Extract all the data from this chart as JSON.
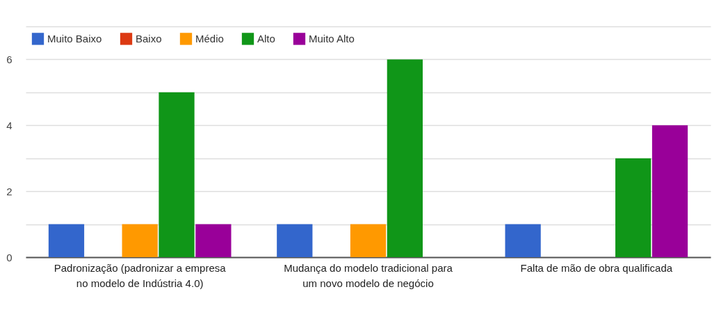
{
  "chart_data": {
    "type": "bar",
    "categories": [
      "Padronização (padronizar a empresa no modelo de Indústria 4.0)",
      "Mudança do modelo tradicional para um novo modelo de negócio",
      "Falta de mão de obra qualificada"
    ],
    "series": [
      {
        "name": "Muito Baixo",
        "color": "#3366cc",
        "values": [
          1,
          1,
          1
        ]
      },
      {
        "name": "Baixo",
        "color": "#dc3912",
        "values": [
          0,
          0,
          0
        ]
      },
      {
        "name": "Médio",
        "color": "#ff9900",
        "values": [
          1,
          1,
          0
        ]
      },
      {
        "name": "Alto",
        "color": "#109618",
        "values": [
          5,
          6,
          3
        ]
      },
      {
        "name": "Muito Alto",
        "color": "#990099",
        "values": [
          1,
          0,
          4
        ]
      }
    ],
    "ylim": [
      0,
      7
    ],
    "yticks": [
      0,
      {
        "value": 1,
        "label": null
      },
      2,
      {
        "value": 3,
        "label": null
      },
      4,
      {
        "value": 5,
        "label": null
      },
      6,
      {
        "value": 7,
        "label": null
      }
    ],
    "grid": "y",
    "legend": "top left"
  }
}
